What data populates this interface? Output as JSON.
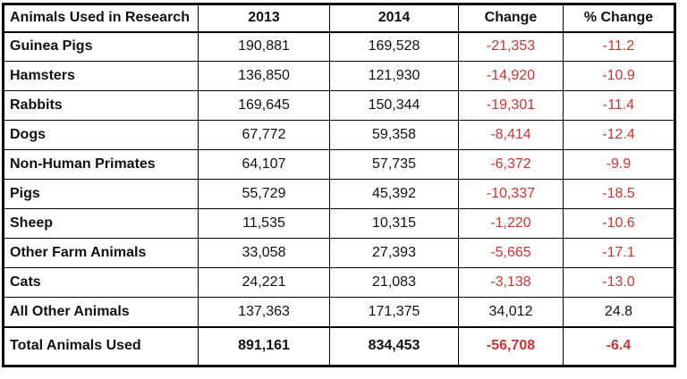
{
  "colors": {
    "negative_text": "#cc3333",
    "normal_text": "#111111",
    "border": "#000000",
    "background": "#ffffff"
  },
  "table": {
    "headers": [
      "Animals Used in Research",
      "2013",
      "2014",
      "Change",
      "% Change"
    ],
    "rows": [
      {
        "label": "Guinea Pigs",
        "y2013": "190,881",
        "y2014": "169,528",
        "change": "-21,353",
        "pct": "-11.2"
      },
      {
        "label": "Hamsters",
        "y2013": "136,850",
        "y2014": "121,930",
        "change": "-14,920",
        "pct": "-10.9"
      },
      {
        "label": "Rabbits",
        "y2013": "169,645",
        "y2014": "150,344",
        "change": "-19,301",
        "pct": "-11.4"
      },
      {
        "label": "Dogs",
        "y2013": "67,772",
        "y2014": "59,358",
        "change": "-8,414",
        "pct": "-12.4"
      },
      {
        "label": "Non-Human Primates",
        "y2013": "64,107",
        "y2014": "57,735",
        "change": "-6,372",
        "pct": "-9.9"
      },
      {
        "label": "Pigs",
        "y2013": "55,729",
        "y2014": "45,392",
        "change": "-10,337",
        "pct": "-18.5"
      },
      {
        "label": "Sheep",
        "y2013": "11,535",
        "y2014": "10,315",
        "change": "-1,220",
        "pct": "-10.6"
      },
      {
        "label": "Other Farm Animals",
        "y2013": "33,058",
        "y2014": "27,393",
        "change": "-5,665",
        "pct": "-17.1"
      },
      {
        "label": "Cats",
        "y2013": "24,221",
        "y2014": "21,083",
        "change": "-3,138",
        "pct": "-13.0"
      },
      {
        "label": "All Other Animals",
        "y2013": "137,363",
        "y2014": "171,375",
        "change": "34,012",
        "pct": "24.8"
      }
    ],
    "total": {
      "label": "Total Animals Used",
      "y2013": "891,161",
      "y2014": "834,453",
      "change": "-56,708",
      "pct": "-6.4"
    }
  },
  "chart_data": {
    "type": "table",
    "title": "Animals Used in Research",
    "columns": [
      "Animals Used in Research",
      "2013",
      "2014",
      "Change",
      "% Change"
    ],
    "rows": [
      [
        "Guinea Pigs",
        190881,
        169528,
        -21353,
        -11.2
      ],
      [
        "Hamsters",
        136850,
        121930,
        -14920,
        -10.9
      ],
      [
        "Rabbits",
        169645,
        150344,
        -19301,
        -11.4
      ],
      [
        "Dogs",
        67772,
        59358,
        -8414,
        -12.4
      ],
      [
        "Non-Human Primates",
        64107,
        57735,
        -6372,
        -9.9
      ],
      [
        "Pigs",
        55729,
        45392,
        -10337,
        -18.5
      ],
      [
        "Sheep",
        11535,
        10315,
        -1220,
        -10.6
      ],
      [
        "Other Farm Animals",
        33058,
        27393,
        -5665,
        -17.1
      ],
      [
        "Cats",
        24221,
        21083,
        -3138,
        -13.0
      ],
      [
        "All Other Animals",
        137363,
        171375,
        34012,
        24.8
      ],
      [
        "Total Animals Used",
        891161,
        834453,
        -56708,
        -6.4
      ]
    ],
    "layout_hints": {
      "negative_values_in_red": true,
      "bold_first_column": true,
      "bold_total_row": true,
      "numeric_columns_centered": true
    }
  }
}
